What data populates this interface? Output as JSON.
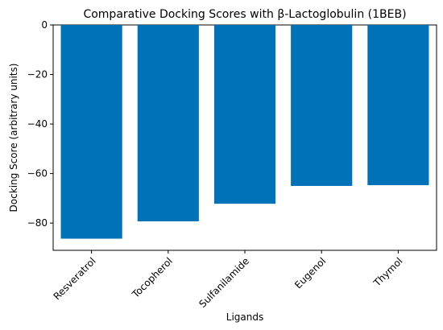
{
  "chart_data": {
    "type": "bar",
    "title": "Comparative Docking Scores with β-Lactoglobulin (1BEB)",
    "xlabel": "Ligands",
    "ylabel": "Docking Score (arbitrary units)",
    "categories": [
      "Resveratrol",
      "Tocopherol",
      "Sulfanilamide",
      "Eugenol",
      "Thymol"
    ],
    "values": [
      -86.3,
      -79.3,
      -72.2,
      -65.0,
      -64.7
    ],
    "ylim": [
      -91,
      0
    ],
    "yticks": [
      0,
      -20,
      -40,
      -60,
      -80
    ],
    "bar_color": "#0072b8",
    "grid": false,
    "legend": "none"
  }
}
